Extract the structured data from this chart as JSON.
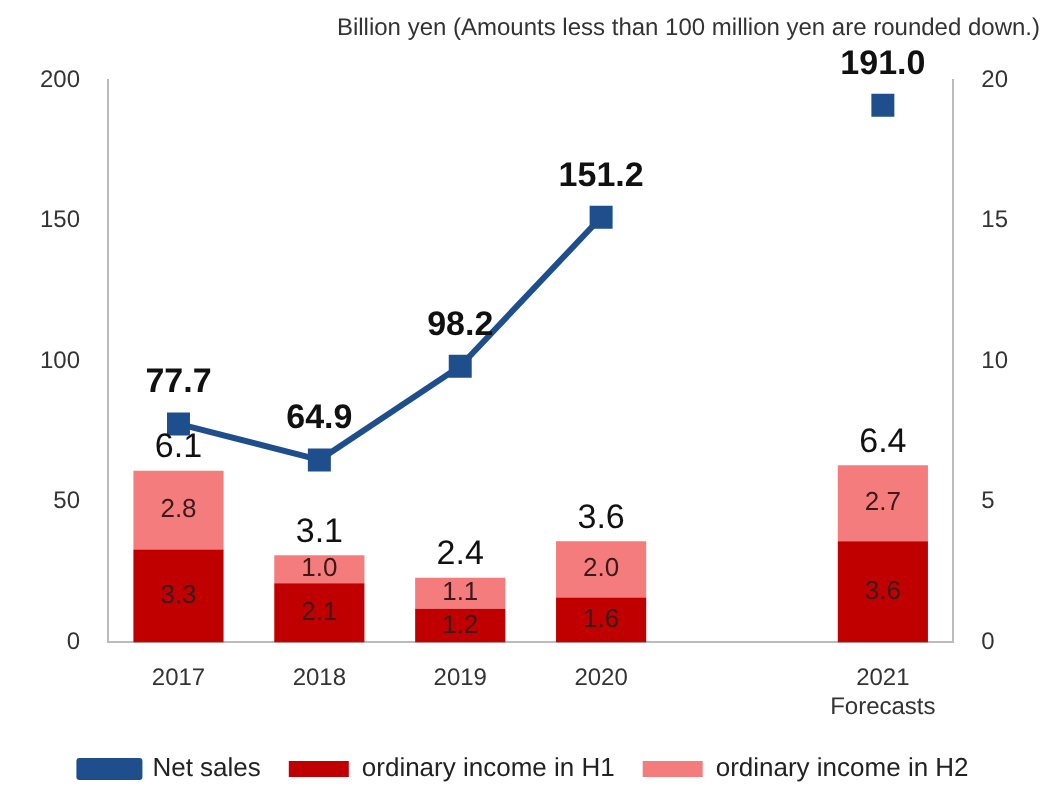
{
  "chart_data": {
    "type": "bar",
    "stacked": true,
    "categories": [
      "2017",
      "2018",
      "2019",
      "2020",
      null,
      "2021\nForecasts"
    ],
    "series": [
      {
        "name": "ordinary income in H1",
        "color": "#c00000",
        "axis": "y2",
        "values": [
          3.3,
          2.1,
          1.2,
          1.6,
          null,
          3.6
        ],
        "value_labels": [
          "3.3",
          "2.1",
          "1.2",
          "1.6",
          null,
          "3.6"
        ]
      },
      {
        "name": "ordinary income in H2",
        "color": "#f47c7c",
        "axis": "y2",
        "values": [
          2.8,
          1.0,
          1.1,
          2.0,
          null,
          2.7
        ],
        "value_labels": [
          "2.8",
          "1.0",
          "1.1",
          "2.0",
          null,
          "2.7"
        ]
      },
      {
        "name": "Net sales",
        "type": "line",
        "color": "#1f4e8c",
        "axis": "y",
        "marker": "square",
        "values": [
          77.7,
          64.9,
          98.2,
          151.2,
          null,
          191.0
        ],
        "value_labels": [
          "77.7",
          "64.9",
          "98.2",
          "151.2",
          null,
          "191.0"
        ]
      }
    ],
    "totals": [
      "6.1",
      "3.1",
      "2.4",
      "3.6",
      null,
      "6.4"
    ],
    "ylim": [
      0,
      200
    ],
    "yticks": [
      0,
      50,
      100,
      150,
      200
    ],
    "y2lim": [
      0,
      20
    ],
    "y2ticks": [
      0,
      5,
      10,
      15,
      20
    ],
    "grid": false,
    "legend": "bottom",
    "annotations": [
      "Billion yen (Amounts less than 100 million yen are rounded down.)"
    ]
  }
}
